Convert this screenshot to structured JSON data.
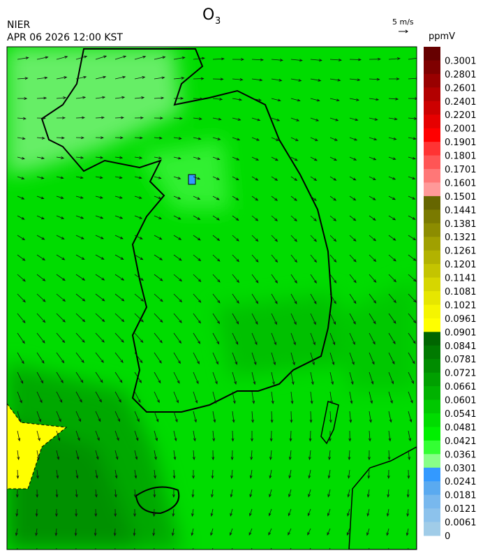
{
  "header": {
    "title": "O",
    "title_sub": "3",
    "agency": "NIER",
    "timestamp": "APR 06 2026 12:00 KST",
    "wind_scale": "5 m/s"
  },
  "colorbar": {
    "unit": "ppmV",
    "levels": [
      0.3001,
      0.2801,
      0.2601,
      0.2401,
      0.2201,
      0.2001,
      0.1901,
      0.1801,
      0.1701,
      0.1601,
      0.1501,
      0.1441,
      0.1381,
      0.1321,
      0.1261,
      0.1201,
      0.1141,
      0.1081,
      0.1021,
      0.0961,
      0.0901,
      0.0841,
      0.0781,
      0.0721,
      0.0661,
      0.0601,
      0.0541,
      0.0481,
      0.0421,
      0.0361,
      0.0301,
      0.0241,
      0.0181,
      0.0121,
      0.0061,
      0
    ],
    "colors": [
      "#660000",
      "#7f0000",
      "#990000",
      "#b20000",
      "#cc0000",
      "#e60000",
      "#ff0000",
      "#ff3333",
      "#ff5555",
      "#ff7777",
      "#ff9999",
      "#666600",
      "#7a7a00",
      "#8c8c00",
      "#a0a000",
      "#b2b200",
      "#c4c400",
      "#d6d600",
      "#e6e600",
      "#f5f500",
      "#ffff00",
      "#006600",
      "#007a00",
      "#008c00",
      "#00a000",
      "#00b200",
      "#00c800",
      "#00dc00",
      "#00f000",
      "#33ff33",
      "#88ff88",
      "#3399ff",
      "#5aaaf0",
      "#78b8ee",
      "#8cc2ec",
      "#a0cce8"
    ]
  }
}
